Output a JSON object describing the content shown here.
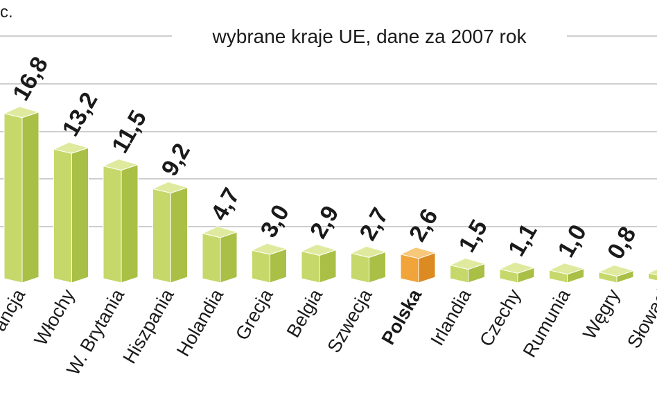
{
  "corner_text": "c.",
  "chart_data": {
    "type": "bar",
    "subtitle": "wybrane kraje UE, dane za 2007 rok",
    "categories": [
      "Francja",
      "Włochy",
      "W. Brytania",
      "Hiszpania",
      "Holandia",
      "Grecja",
      "Belgia",
      "Szwecja",
      "Polska",
      "Irlandia",
      "Czechy",
      "Rumunia",
      "Węgry",
      "Słowacja"
    ],
    "visible_category_labels": [
      "ancja",
      "Włochy",
      "W. Brytania",
      "Hiszpania",
      "Holandia",
      "Grecja",
      "Belgia",
      "Szwecja",
      "Polska",
      "Irlandia",
      "Czechy",
      "Rumunia",
      "Węgry",
      "Słowacj"
    ],
    "values": [
      16.8,
      13.2,
      11.5,
      9.2,
      4.7,
      3.0,
      2.9,
      2.7,
      2.6,
      1.5,
      1.1,
      1.0,
      0.8,
      null
    ],
    "value_labels": [
      "16,8",
      "13,2",
      "11,5",
      "9,2",
      "4,7",
      "3,0",
      "2,9",
      "2,7",
      "2,6",
      "1,5",
      "1,1",
      "1,0",
      "0,8",
      ""
    ],
    "highlight": "Polska",
    "grid": true,
    "colors": {
      "bar_front": "#c6d86a",
      "bar_side": "#a9bf45",
      "bar_top": "#dfea9e",
      "highlight_front": "#f0a43a",
      "highlight_side": "#dc8a22",
      "highlight_top": "#f7c77a",
      "grid": "#bdbdbd",
      "text": "#1a1a1a"
    }
  }
}
